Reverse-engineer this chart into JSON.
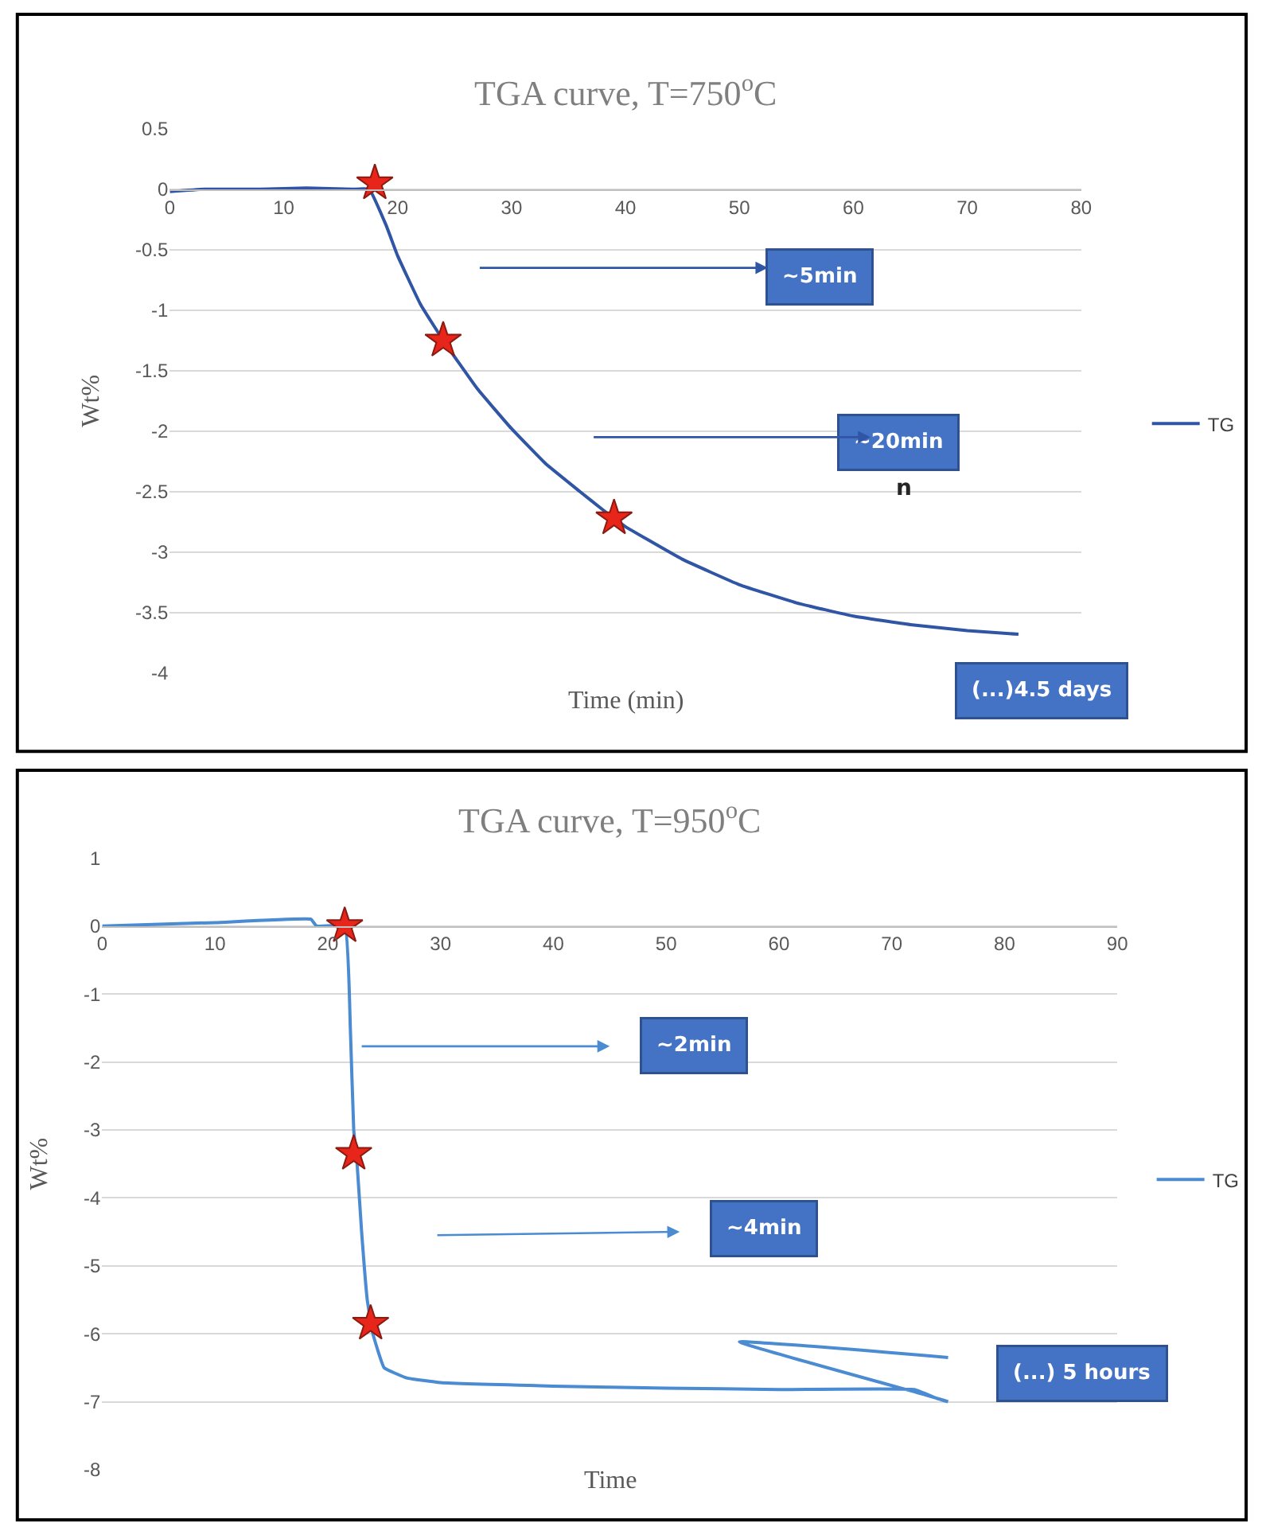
{
  "chart_data": [
    {
      "type": "line",
      "title": "TGA curve, T=750$^{o}$C",
      "xlabel": "Time (min)",
      "ylabel": "Wt%",
      "series": [
        {
          "name": "TG",
          "color": "#2f55a4",
          "marker": "none",
          "x": [
            0,
            3,
            8,
            12,
            16,
            17.5,
            19,
            20,
            22,
            24,
            27,
            30,
            33,
            36,
            38,
            40,
            42,
            45,
            50,
            55,
            60,
            65,
            70,
            74.5
          ],
          "values": [
            -0.02,
            0.0,
            0.0,
            0.01,
            0.0,
            0.0,
            -0.3,
            -0.55,
            -0.95,
            -1.25,
            -1.65,
            -1.98,
            -2.27,
            -2.5,
            -2.65,
            -2.79,
            -2.9,
            -3.06,
            -3.27,
            -3.42,
            -3.53,
            -3.6,
            -3.65,
            -3.68
          ]
        },
        {
          "type": "scatter",
          "color": "#e8251a",
          "marker": "star",
          "x": [
            18,
            24,
            39
          ],
          "values": [
            0.05,
            -1.25,
            -2.72
          ]
        }
      ],
      "xlim": [
        0,
        80
      ],
      "xticks": [
        0,
        10,
        20,
        30,
        40,
        50,
        60,
        70,
        80
      ],
      "ylim": [
        -4,
        0.5
      ],
      "yticks": [
        0.5,
        0,
        -0.5,
        -1,
        -1.5,
        -2,
        -2.5,
        -3,
        -3.5,
        -4
      ],
      "grid": "y",
      "legend": "right",
      "annotations": [
        "~5min",
        "~20min",
        "n",
        "(...)4.5 days"
      ]
    },
    {
      "type": "line",
      "title": "TGA curve, T=950$^{o}$C",
      "xlabel": "Time",
      "ylabel": "Wt%",
      "series": [
        {
          "name": "TG",
          "color": "#4a8bd2",
          "marker": "none",
          "x": [
            0,
            10,
            18.5,
            19,
            21.5,
            22,
            22.3,
            22.6,
            23,
            23.5,
            24,
            25,
            27,
            30,
            40,
            50,
            60,
            72,
            74,
            75,
            73,
            56.5,
            75
          ],
          "values": [
            0,
            0.05,
            0.1,
            0,
            0,
            -1.5,
            -3,
            -3.5,
            -4.5,
            -5.5,
            -6.0,
            -6.5,
            -6.65,
            -6.72,
            -6.77,
            -6.8,
            -6.82,
            -6.82,
            -6.95,
            -7.0,
            -6.9,
            -6.12,
            -6.35
          ]
        },
        {
          "type": "scatter",
          "color": "#e8251a",
          "marker": "star",
          "x": [
            21.5,
            22.3,
            23.8
          ],
          "values": [
            0,
            -3.35,
            -5.85
          ]
        }
      ],
      "xlim": [
        0,
        90
      ],
      "xticks": [
        0,
        10,
        20,
        30,
        40,
        50,
        60,
        70,
        80,
        90
      ],
      "ylim": [
        -8,
        1
      ],
      "yticks": [
        1,
        0,
        -1,
        -2,
        -3,
        -4,
        -5,
        -6,
        -7,
        -8
      ],
      "grid": "y",
      "legend": "right",
      "annotations": [
        "~2min",
        "~4min",
        "(...) 5 hours"
      ]
    }
  ]
}
